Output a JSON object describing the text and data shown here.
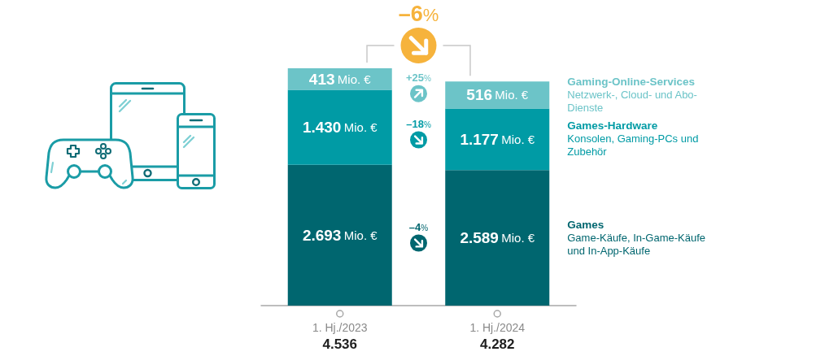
{
  "chart_data": {
    "type": "bar",
    "stacked": true,
    "categories": [
      "1. Hj./2023",
      "1. Hj./2024"
    ],
    "series": [
      {
        "name": "Games",
        "color": "#00666f",
        "values": [
          2693,
          2589
        ],
        "value_labels": [
          "2.693 Mio. €",
          "2.589 Mio. €"
        ]
      },
      {
        "name": "Games-Hardware",
        "color": "#009ba5",
        "values": [
          1430,
          1177
        ],
        "value_labels": [
          "1.430 Mio. €",
          "1.177 Mio. €"
        ]
      },
      {
        "name": "Gaming-Online-Services",
        "color": "#6cc4c8",
        "values": [
          413,
          516
        ],
        "value_labels": [
          "413 Mio. €",
          "516 Mio. €"
        ]
      }
    ],
    "totals": [
      "4.536",
      "4.282"
    ],
    "annotations": [
      "–6%",
      "+25%",
      "–18%",
      "–4%",
      "Netzwerk-, Cloud- und Abo-Dienste",
      "Konsolen, Gaming-PCs und Zubehör",
      "Game-Käufe, In-Game-Käufe und In-App-Käufe"
    ],
    "legend": "right"
  }
}
